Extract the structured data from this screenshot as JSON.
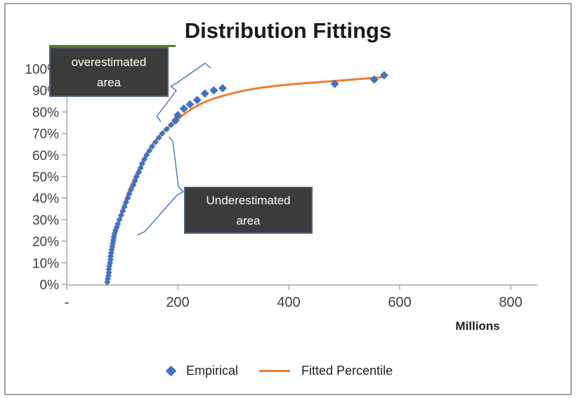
{
  "title": "Distribution Fittings",
  "axis": {
    "x": {
      "unit_label": "Millions"
    }
  },
  "annotations": {
    "overestimated": {
      "line1": "overestimated",
      "line2": "area"
    },
    "underestimated": {
      "line1": "Underestimated",
      "line2": "area"
    }
  },
  "legend": {
    "empirical_label": "Empirical",
    "fitted_label": "Fitted Percentile"
  },
  "colors": {
    "empirical": "#4472C4",
    "fitted": "#ED7D31",
    "axis": "#A6A6A6",
    "tick_text": "#404040",
    "callout_bg": "#3B3B3B",
    "callout_border": "#4A617A",
    "green_accent": "#538135",
    "bracket": "#4472C4"
  },
  "chart_data": {
    "type": "scatter",
    "title": "Distribution Fittings",
    "x_axis": {
      "min": 0,
      "max": 800,
      "tick_values": [
        0,
        200,
        400,
        600,
        800
      ],
      "tick_labels": [
        "-",
        "200",
        "400",
        "600",
        "800"
      ],
      "unit": "Millions",
      "grid": false
    },
    "y_axis": {
      "min": 0,
      "max": 100,
      "tick_values": [
        0,
        10,
        20,
        30,
        40,
        50,
        60,
        70,
        80,
        90,
        100
      ],
      "tick_labels": [
        "0%",
        "10%",
        "20%",
        "30%",
        "40%",
        "50%",
        "60%",
        "70%",
        "80%",
        "90%",
        "100%"
      ],
      "grid": false
    },
    "legend_position": "bottom",
    "series": [
      {
        "name": "Empirical",
        "type": "scatter",
        "marker": "diamond",
        "color": "#4472C4",
        "points": [
          [
            73,
            1
          ],
          [
            74,
            2.5
          ],
          [
            75,
            4
          ],
          [
            76,
            5.5
          ],
          [
            76,
            7
          ],
          [
            77,
            8.5
          ],
          [
            78,
            10
          ],
          [
            79,
            11.5
          ],
          [
            79,
            13
          ],
          [
            80,
            14.5
          ],
          [
            81,
            16
          ],
          [
            82,
            17.5
          ],
          [
            83,
            19
          ],
          [
            84,
            20.5
          ],
          [
            85,
            22
          ],
          [
            86,
            23.5
          ],
          [
            88,
            25
          ],
          [
            90,
            26.5
          ],
          [
            92,
            28
          ],
          [
            95,
            30
          ],
          [
            98,
            32
          ],
          [
            101,
            34
          ],
          [
            104,
            36
          ],
          [
            107,
            38
          ],
          [
            110,
            40
          ],
          [
            113,
            42
          ],
          [
            116,
            44
          ],
          [
            120,
            46
          ],
          [
            123,
            48
          ],
          [
            126,
            50
          ],
          [
            130,
            52
          ],
          [
            133,
            54
          ],
          [
            136,
            56
          ],
          [
            140,
            58
          ],
          [
            144,
            60
          ],
          [
            149,
            62
          ],
          [
            154,
            64
          ],
          [
            160,
            66
          ],
          [
            166,
            68
          ],
          [
            172,
            70
          ],
          [
            180,
            72
          ],
          [
            188,
            74
          ],
          [
            196,
            76
          ],
          [
            200,
            78.5
          ],
          [
            211,
            81.5
          ],
          [
            222,
            83.5
          ],
          [
            235,
            85.5
          ],
          [
            249,
            88.5
          ],
          [
            265,
            90
          ],
          [
            281,
            91
          ],
          [
            483,
            93
          ],
          [
            554,
            95
          ],
          [
            572,
            97
          ]
        ]
      },
      {
        "name": "Fitted Percentile",
        "type": "line",
        "color": "#ED7D31",
        "points": [
          [
            72,
            0
          ],
          [
            76,
            6
          ],
          [
            80,
            12
          ],
          [
            85,
            19
          ],
          [
            90,
            25
          ],
          [
            96,
            31
          ],
          [
            103,
            37
          ],
          [
            110,
            42
          ],
          [
            118,
            47
          ],
          [
            127,
            52
          ],
          [
            137,
            57
          ],
          [
            147,
            62
          ],
          [
            158,
            66
          ],
          [
            170,
            69.5
          ],
          [
            184,
            73
          ],
          [
            200,
            76.5
          ],
          [
            220,
            80.5
          ],
          [
            240,
            83.5
          ],
          [
            260,
            85.7
          ],
          [
            285,
            87.7
          ],
          [
            310,
            89.3
          ],
          [
            340,
            90.8
          ],
          [
            375,
            92
          ],
          [
            415,
            93
          ],
          [
            455,
            93.8
          ],
          [
            495,
            94.6
          ],
          [
            535,
            95.4
          ],
          [
            570,
            96.2
          ]
        ]
      }
    ],
    "annotations": [
      {
        "text": "overestimated area"
      },
      {
        "text": "Underestimated area"
      }
    ]
  }
}
